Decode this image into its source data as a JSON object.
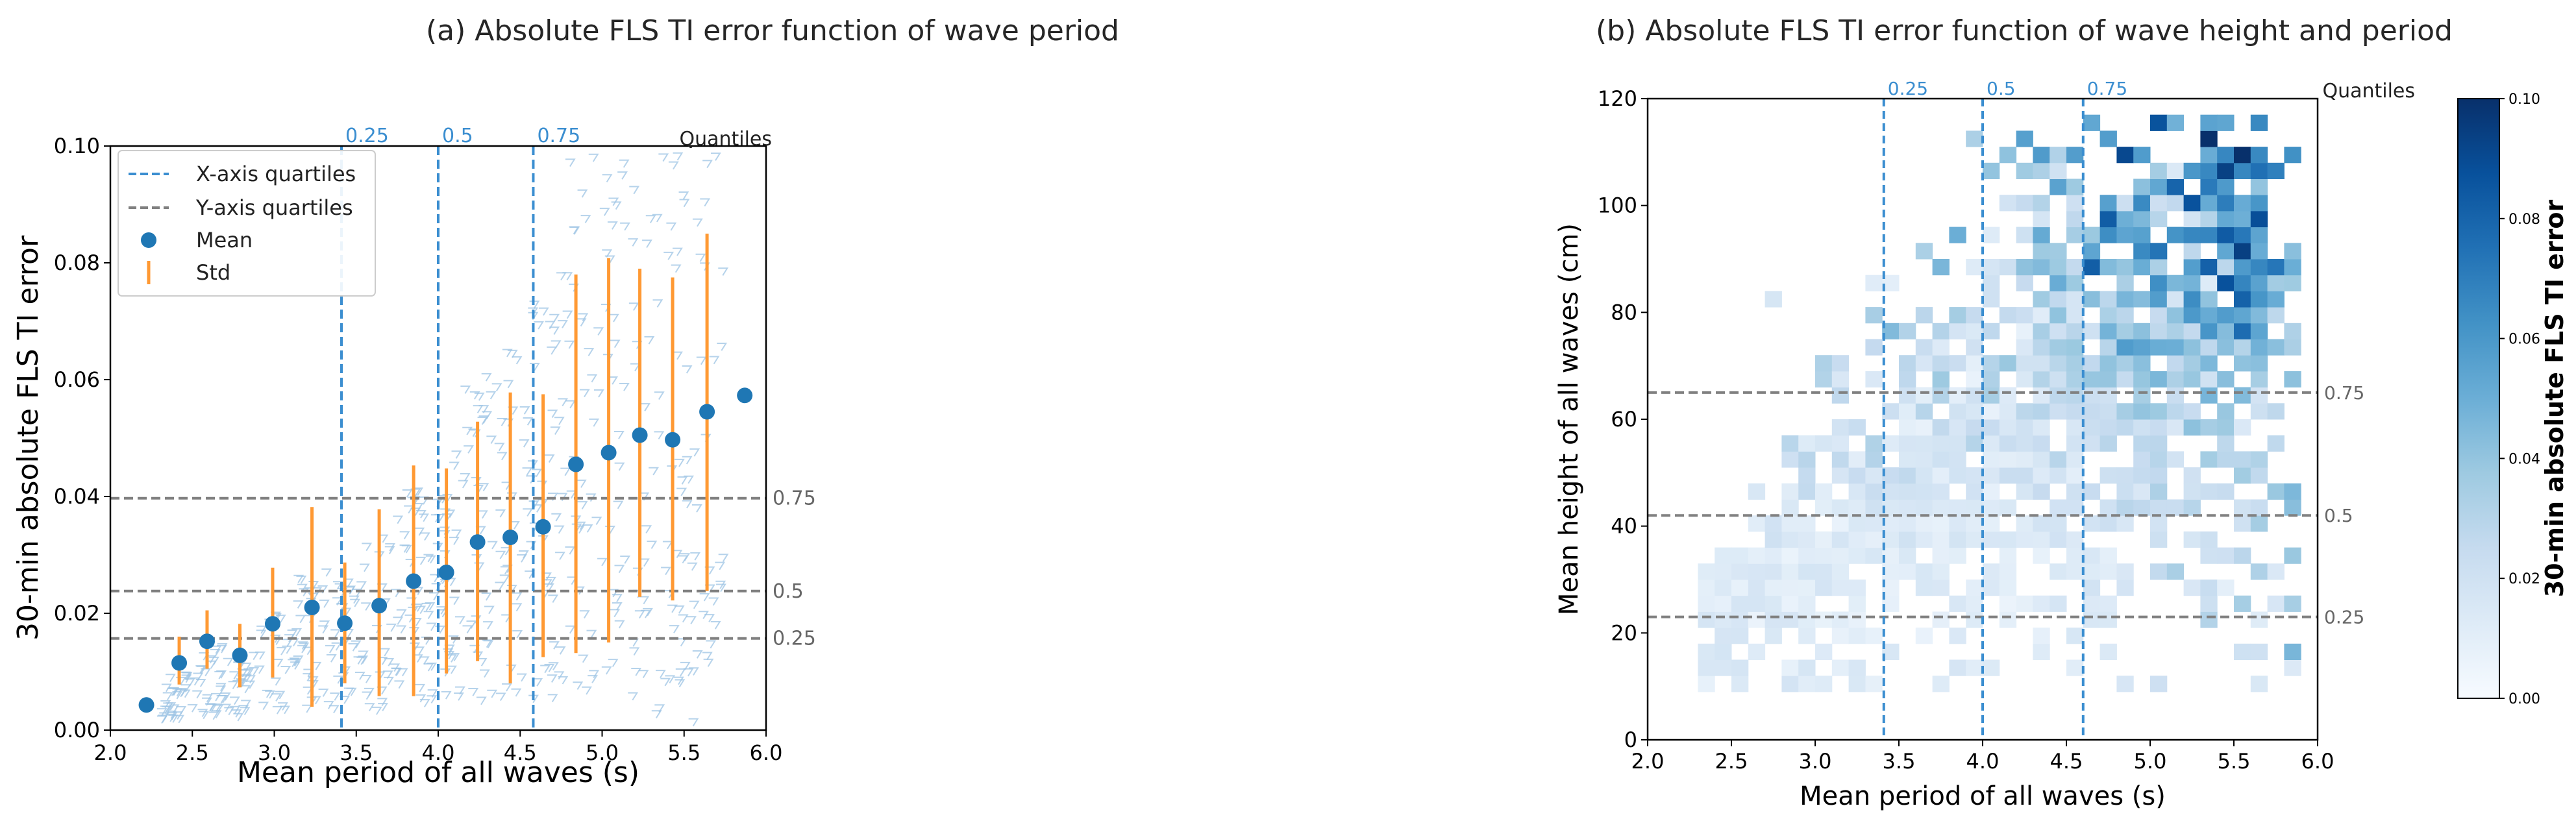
{
  "chart_data": [
    {
      "panel": "a",
      "type": "scatter",
      "title": "(a) Absolute FLS TI error function of wave period",
      "xlabel": "Mean period of all waves (s)",
      "ylabel": "30-min absolute FLS TI error",
      "xlim": [
        2.0,
        6.0
      ],
      "ylim": [
        0.0,
        0.1
      ],
      "xticks": [
        "2.0",
        "2.5",
        "3.0",
        "3.5",
        "4.0",
        "4.5",
        "5.0",
        "5.5",
        "6.0"
      ],
      "yticks": [
        "0.00",
        "0.02",
        "0.04",
        "0.06",
        "0.08",
        "0.10"
      ],
      "legend": {
        "position": "top-left",
        "entries": [
          {
            "label": "X-axis quartiles",
            "marker": "dashed-line",
            "color": "#3b8ed0"
          },
          {
            "label": "Y-axis quartiles",
            "marker": "dashed-line",
            "color": "#808080"
          },
          {
            "label": "Mean",
            "marker": "dot",
            "color": "#1f77b4"
          },
          {
            "label": "Std",
            "marker": "bar",
            "color": "#ff9933"
          }
        ]
      },
      "quantiles_label": "Quantiles",
      "x_quartiles": [
        {
          "label": "0.25",
          "x": 3.41
        },
        {
          "label": "0.5",
          "x": 4.0
        },
        {
          "label": "0.75",
          "x": 4.58
        }
      ],
      "y_quartiles": [
        {
          "label": "0.75",
          "y": 0.0397
        },
        {
          "label": "0.5",
          "y": 0.0238
        },
        {
          "label": "0.25",
          "y": 0.0157
        }
      ],
      "mean_series": {
        "name": "Mean",
        "x": [
          2.22,
          2.42,
          2.59,
          2.79,
          2.99,
          3.23,
          3.43,
          3.64,
          3.85,
          4.05,
          4.24,
          4.44,
          4.64,
          4.84,
          5.04,
          5.23,
          5.43,
          5.64,
          5.87
        ],
        "y": [
          0.0043,
          0.0115,
          0.0152,
          0.0128,
          0.0182,
          0.021,
          0.0183,
          0.0213,
          0.0255,
          0.027,
          0.0322,
          0.033,
          0.0348,
          0.0455,
          0.0475,
          0.0505,
          0.0497,
          0.0545,
          0.0573
        ],
        "std_low": [
          null,
          0.0078,
          0.0105,
          0.0073,
          0.009,
          0.004,
          0.008,
          0.0058,
          0.0058,
          0.0097,
          0.0118,
          0.008,
          0.0125,
          0.0132,
          0.015,
          0.0228,
          0.0222,
          0.0238,
          null
        ],
        "std_high": [
          null,
          0.016,
          0.0205,
          0.0182,
          0.0278,
          0.0382,
          0.0287,
          0.0378,
          0.0453,
          0.0448,
          0.0528,
          0.0578,
          0.0575,
          0.078,
          0.0808,
          0.079,
          0.0775,
          0.085,
          null
        ]
      },
      "scatter_series": {
        "name": "Samples",
        "marker": "tri-down",
        "color": "#9ec4e4",
        "n_points": 620
      }
    },
    {
      "panel": "b",
      "type": "heatmap",
      "title": "(b) Absolute FLS TI error function of wave height and period",
      "xlabel": "Mean period of all waves (s)",
      "ylabel": "Mean height of all waves (cm)",
      "xlim": [
        2.0,
        6.0
      ],
      "ylim": [
        0,
        120
      ],
      "xticks": [
        "2.0",
        "2.5",
        "3.0",
        "3.5",
        "4.0",
        "4.5",
        "5.0",
        "5.5",
        "6.0"
      ],
      "yticks": [
        "0",
        "20",
        "40",
        "60",
        "80",
        "100",
        "120"
      ],
      "bin_size": {
        "x": 0.1,
        "y": 3
      },
      "quantiles_label": "Quantiles",
      "x_quartiles": [
        {
          "label": "0.25",
          "x": 3.41
        },
        {
          "label": "0.5",
          "x": 4.0
        },
        {
          "label": "0.75",
          "x": 4.6
        }
      ],
      "y_quartiles": [
        {
          "label": "0.75",
          "y": 65
        },
        {
          "label": "0.5",
          "y": 42
        },
        {
          "label": "0.25",
          "y": 23
        }
      ],
      "colorbar": {
        "label": "30-min absolute FLS TI error",
        "range": [
          0.0,
          0.1
        ],
        "ticks": [
          "0.00",
          "0.02",
          "0.04",
          "0.06",
          "0.08",
          "0.10"
        ],
        "cmap": "Blues"
      }
    }
  ]
}
